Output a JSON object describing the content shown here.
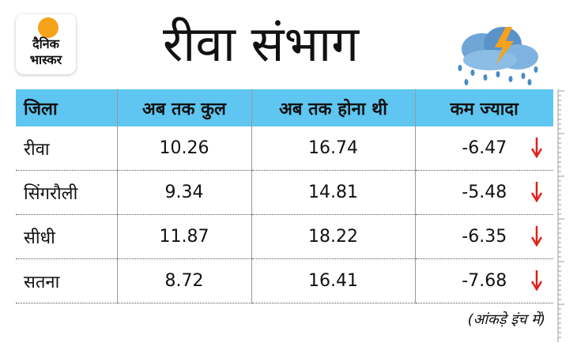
{
  "header": {
    "logo": [
      "दैनिक",
      "भास्कर"
    ],
    "title": "रीवा संभाग"
  },
  "table": {
    "columns": [
      "जिला",
      "अब तक कुल",
      "अब तक होना थी",
      "कम ज्यादा"
    ],
    "rows": [
      [
        "रीवा",
        "10.26",
        "16.74",
        "-6.47"
      ],
      [
        "सिंगरौली",
        "9.34",
        "14.81",
        "-5.48"
      ],
      [
        "सीधी",
        "11.87",
        "18.22",
        "-6.35"
      ],
      [
        "सतना",
        "8.72",
        "16.41",
        "-7.68"
      ]
    ]
  },
  "footnote": "(आंकड़े इंच में)"
}
